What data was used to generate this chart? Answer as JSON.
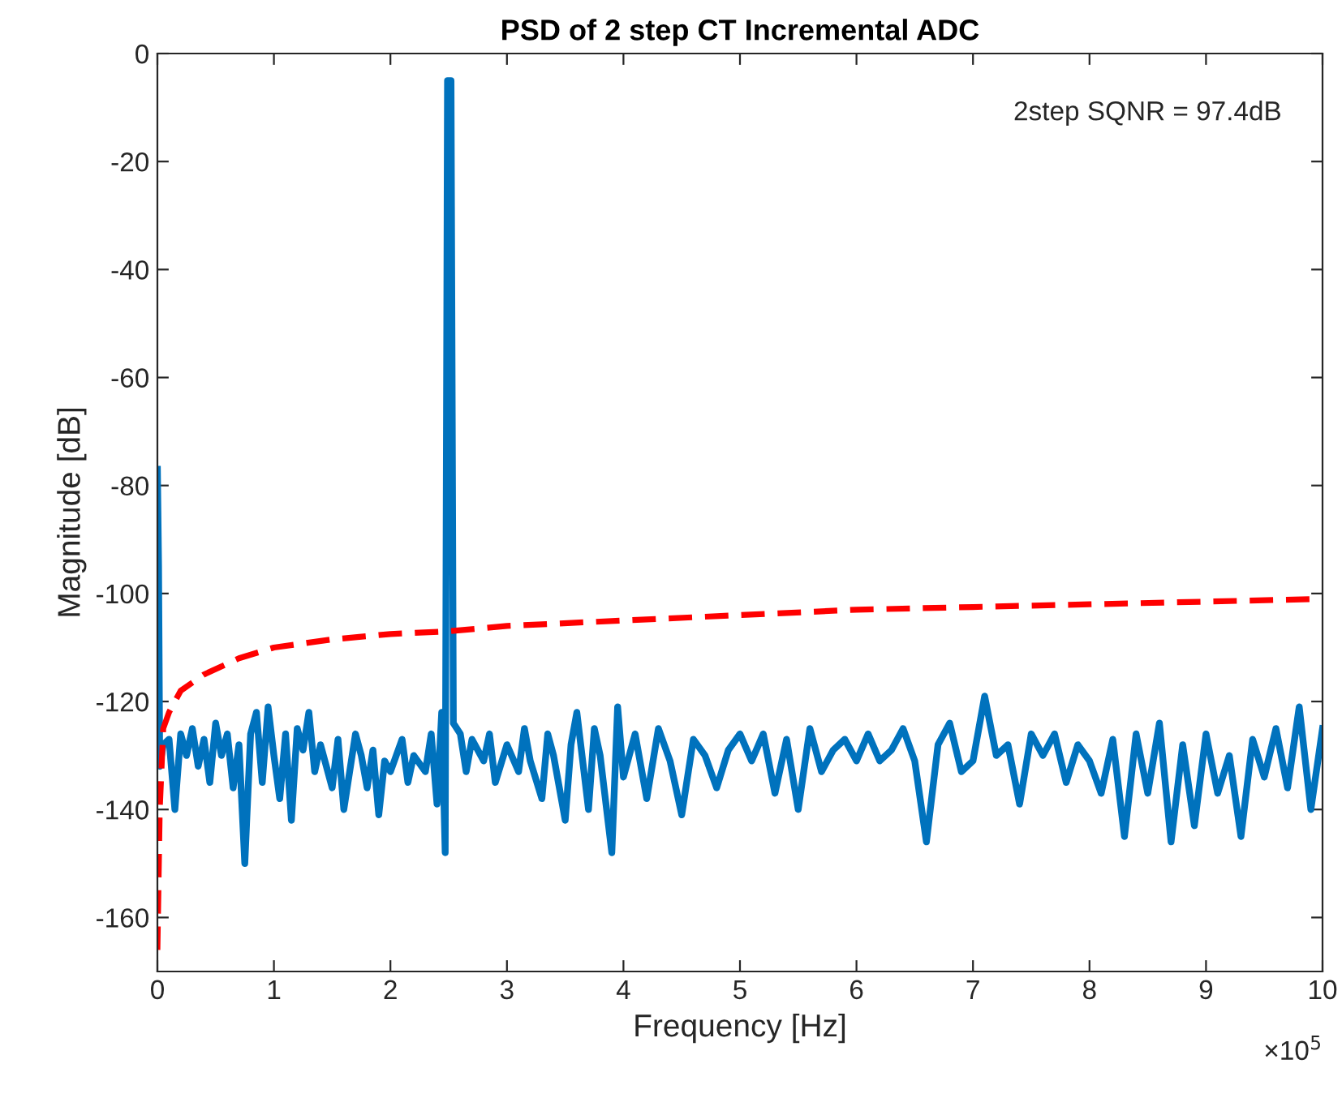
{
  "chart_data": {
    "type": "line",
    "title": "PSD of 2 step CT Incremental ADC",
    "xlabel": "Frequency [Hz]",
    "ylabel": "Magnitude [dB]",
    "annotations": [
      "2step SQNR = 97.4dB",
      "×10$^{5}$"
    ],
    "xlim": [
      0,
      10
    ],
    "ylim": [
      -170,
      0
    ],
    "xticks": [
      0,
      1,
      2,
      3,
      4,
      5,
      6,
      7,
      8,
      9,
      10
    ],
    "yticks": [
      -160,
      -140,
      -120,
      -100,
      -80,
      -60,
      -40,
      -20,
      0
    ],
    "grid": false,
    "legend": false,
    "marker": "none",
    "series": [
      {
        "color": "#0072bd",
        "line_style": "solid",
        "x": [
          0,
          0.01,
          0.02,
          0.05,
          0.1,
          0.15,
          0.2,
          0.25,
          0.3,
          0.35,
          0.4,
          0.45,
          0.5,
          0.55,
          0.6,
          0.65,
          0.7,
          0.75,
          0.8,
          0.85,
          0.9,
          0.95,
          1.0,
          1.05,
          1.1,
          1.15,
          1.2,
          1.25,
          1.3,
          1.35,
          1.4,
          1.5,
          1.55,
          1.6,
          1.7,
          1.75,
          1.8,
          1.85,
          1.9,
          1.95,
          2.0,
          2.05,
          2.1,
          2.15,
          2.2,
          2.3,
          2.35,
          2.4,
          2.44,
          2.47,
          2.49,
          2.52,
          2.54,
          2.6,
          2.65,
          2.7,
          2.8,
          2.85,
          2.9,
          3.0,
          3.1,
          3.15,
          3.2,
          3.3,
          3.35,
          3.4,
          3.5,
          3.55,
          3.6,
          3.7,
          3.75,
          3.8,
          3.9,
          3.95,
          4.0,
          4.1,
          4.2,
          4.3,
          4.4,
          4.5,
          4.6,
          4.7,
          4.8,
          4.9,
          5.0,
          5.1,
          5.2,
          5.3,
          5.4,
          5.5,
          5.6,
          5.7,
          5.8,
          5.9,
          6.0,
          6.1,
          6.2,
          6.3,
          6.4,
          6.5,
          6.6,
          6.7,
          6.8,
          6.9,
          7.0,
          7.1,
          7.2,
          7.3,
          7.4,
          7.5,
          7.6,
          7.7,
          7.8,
          7.9,
          8.0,
          8.1,
          8.2,
          8.3,
          8.4,
          8.5,
          8.6,
          8.7,
          8.8,
          8.9,
          9.0,
          9.1,
          9.2,
          9.3,
          9.4,
          9.5,
          9.6,
          9.7,
          9.8,
          9.9,
          10.0
        ],
        "values": [
          -77,
          -95,
          -132,
          -128,
          -127,
          -140,
          -126,
          -130,
          -125,
          -132,
          -127,
          -135,
          -124,
          -130,
          -126,
          -136,
          -128,
          -150,
          -126,
          -122,
          -135,
          -121,
          -130,
          -138,
          -126,
          -142,
          -125,
          -129,
          -122,
          -133,
          -128,
          -136,
          -127,
          -140,
          -126,
          -130,
          -136,
          -129,
          -141,
          -131,
          -133,
          -130,
          -127,
          -135,
          -130,
          -133,
          -126,
          -139,
          -122,
          -148,
          -5,
          -5,
          -124,
          -126,
          -133,
          -127,
          -131,
          -126,
          -135,
          -128,
          -133,
          -125,
          -131,
          -138,
          -126,
          -130,
          -142,
          -128,
          -122,
          -140,
          -125,
          -130,
          -148,
          -121,
          -134,
          -126,
          -138,
          -125,
          -131,
          -141,
          -127,
          -130,
          -136,
          -129,
          -126,
          -131,
          -126,
          -137,
          -127,
          -140,
          -125,
          -133,
          -129,
          -127,
          -131,
          -126,
          -131,
          -129,
          -125,
          -131,
          -146,
          -128,
          -124,
          -133,
          -131,
          -119,
          -130,
          -128,
          -139,
          -126,
          -130,
          -126,
          -135,
          -128,
          -131,
          -137,
          -127,
          -145,
          -126,
          -137,
          -124,
          -146,
          -128,
          -143,
          -126,
          -137,
          -130,
          -145,
          -127,
          -134,
          -125,
          -136,
          -121,
          -140,
          -125
        ]
      },
      {
        "color": "#ff0000",
        "line_style": "dashed",
        "x": [
          0,
          0.02,
          0.05,
          0.1,
          0.2,
          0.4,
          0.7,
          1.0,
          1.5,
          2.0,
          2.5,
          3.0,
          4.0,
          5.0,
          6.0,
          7.0,
          8.0,
          9.0,
          10.0
        ],
        "values": [
          -166,
          -140,
          -125,
          -122,
          -118,
          -115,
          -112,
          -110,
          -108.5,
          -107.5,
          -107,
          -106,
          -105,
          -104,
          -103,
          -102.5,
          -102,
          -101.5,
          -101
        ]
      }
    ]
  }
}
